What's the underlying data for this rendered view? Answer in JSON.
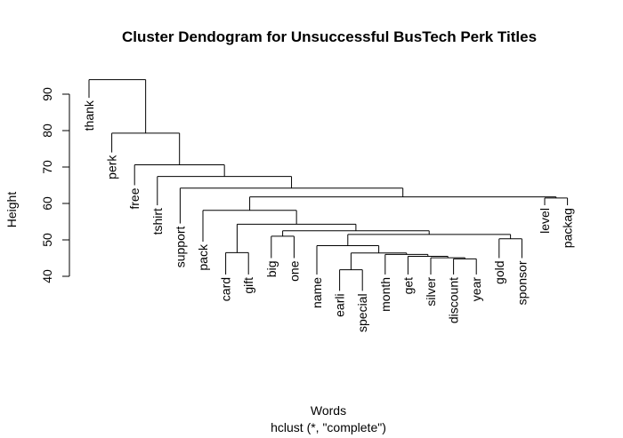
{
  "chart_data": {
    "type": "dendrogram",
    "title": "Cluster Dendogram for Unsuccessful BusTech Perk Titles",
    "xlabel": "Words",
    "sublabel": "hclust (*, \"complete\")",
    "ylabel": "Height",
    "ylim": [
      40,
      95
    ],
    "yticks": [
      40,
      50,
      60,
      70,
      80,
      90
    ],
    "leaves": [
      "thank",
      "perk",
      "free",
      "tshirt",
      "support",
      "pack",
      "card",
      "gift",
      "big",
      "one",
      "name",
      "earli",
      "special",
      "month",
      "get",
      "silver",
      "discount",
      "year",
      "gold",
      "sponsor",
      "level",
      "packag"
    ],
    "leaf_tops": [
      89,
      74,
      65,
      59.5,
      54.5,
      49.5,
      40.5,
      40.5,
      45,
      45,
      40.5,
      36,
      36,
      40.5,
      40.5,
      40.5,
      40.5,
      40.5,
      45,
      45,
      59.5,
      59.5
    ],
    "merges": [
      {
        "left": "leaf:card",
        "right": "leaf:gift",
        "height": 46.5
      },
      {
        "left": "leaf:big",
        "right": "leaf:one",
        "height": 51
      },
      {
        "left": "leaf:earli",
        "right": "leaf:special",
        "height": 41.8
      },
      {
        "left": "leaf:discount",
        "right": "leaf:year",
        "height": 44.8
      },
      {
        "left": "leaf:silver",
        "right": "node:3",
        "height": 45.1
      },
      {
        "left": "leaf:get",
        "right": "node:4",
        "height": 45.5
      },
      {
        "left": "leaf:month",
        "right": "node:5",
        "height": 46
      },
      {
        "left": "node:2",
        "right": "node:6",
        "height": 46.4
      },
      {
        "left": "leaf:name",
        "right": "node:7",
        "height": 48.4
      },
      {
        "left": "leaf:gold",
        "right": "leaf:sponsor",
        "height": 50.3
      },
      {
        "left": "node:8",
        "right": "node:9",
        "height": 51.5
      },
      {
        "left": "node:1",
        "right": "node:10",
        "height": 52.5
      },
      {
        "left": "node:0",
        "right": "node:11",
        "height": 54.3
      },
      {
        "left": "leaf:pack",
        "right": "node:12",
        "height": 58.1
      },
      {
        "left": "leaf:level",
        "right": "leaf:packag",
        "height": 61.5
      },
      {
        "left": "node:13",
        "right": "node:14",
        "height": 61.8
      },
      {
        "left": "leaf:support",
        "right": "node:15",
        "height": 64.2
      },
      {
        "left": "leaf:tshirt",
        "right": "node:16",
        "height": 67.4
      },
      {
        "left": "leaf:free",
        "right": "node:17",
        "height": 70.6
      },
      {
        "left": "leaf:perk",
        "right": "node:18",
        "height": 79.3
      },
      {
        "left": "leaf:thank",
        "right": "node:19",
        "height": 94
      }
    ]
  }
}
